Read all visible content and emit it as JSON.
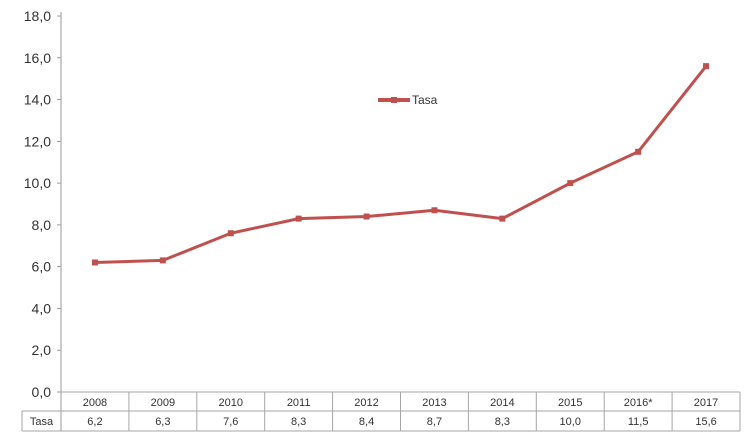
{
  "chart_data": {
    "type": "line",
    "categories": [
      "2008",
      "2009",
      "2010",
      "2011",
      "2012",
      "2013",
      "2014",
      "2015",
      "2016*",
      "2017"
    ],
    "series": [
      {
        "name": "Tasa",
        "values": [
          6.2,
          6.3,
          7.6,
          8.3,
          8.4,
          8.7,
          8.3,
          10.0,
          11.5,
          15.6
        ],
        "value_labels": [
          "6,2",
          "6,3",
          "7,6",
          "8,3",
          "8,4",
          "8,7",
          "8,3",
          "10,0",
          "11,5",
          "15,6"
        ],
        "color": "#c0504d"
      }
    ],
    "y_ticks": [
      "0,0",
      "2,0",
      "4,0",
      "6,0",
      "8,0",
      "10,0",
      "12,0",
      "14,0",
      "16,0",
      "18,0"
    ],
    "ylim": [
      0,
      18
    ],
    "grid": false,
    "legend_position": "top-center",
    "data_table": true
  }
}
